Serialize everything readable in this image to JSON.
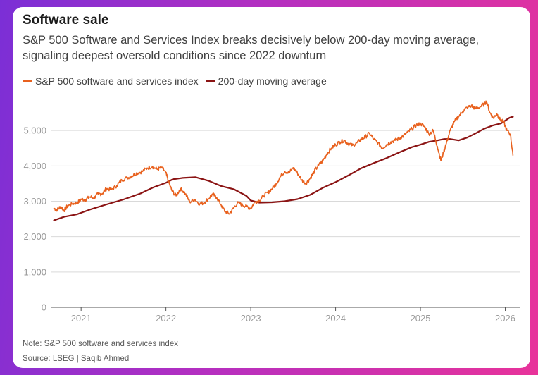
{
  "header": {
    "title": "Software sale",
    "subtitle": "S&P 500 Software and Services Index breaks decisively below 200-day moving average, signaling deepest oversold conditions since 2022 downturn"
  },
  "footer": {
    "note": "Note: S&P 500 software and services index",
    "source": "Source: LSEG | Saqib Ahmed"
  },
  "colors": {
    "index": "#e8611e",
    "moving_average": "#8b1414",
    "grid": "#d9d9d9",
    "axis": "#555555"
  },
  "chart_data": {
    "type": "line",
    "title": "Software sale",
    "xlabel": "",
    "ylabel": "",
    "xlim": [
      2020.65,
      2026.17
    ],
    "ylim": [
      0,
      6000
    ],
    "yticks": [
      0,
      1000,
      2000,
      3000,
      4000,
      5000
    ],
    "ytick_labels": [
      "0",
      "1,000",
      "2,000",
      "3,000",
      "4,000",
      "5,000"
    ],
    "xticks": [
      2021,
      2022,
      2023,
      2024,
      2025,
      2026
    ],
    "xtick_labels": [
      "2021",
      "2022",
      "2023",
      "2024",
      "2025",
      "2026"
    ],
    "legend_position": "top-left",
    "series": [
      {
        "name": "S&P 500 software and services index",
        "color": "#e8611e",
        "x": [
          2020.68,
          2020.72,
          2020.76,
          2020.8,
          2020.84,
          2020.9,
          2020.96,
          2021.0,
          2021.05,
          2021.1,
          2021.15,
          2021.2,
          2021.25,
          2021.3,
          2021.36,
          2021.42,
          2021.48,
          2021.54,
          2021.6,
          2021.66,
          2021.72,
          2021.78,
          2021.84,
          2021.9,
          2021.95,
          2022.0,
          2022.03,
          2022.07,
          2022.12,
          2022.17,
          2022.22,
          2022.28,
          2022.34,
          2022.4,
          2022.45,
          2022.5,
          2022.55,
          2022.6,
          2022.65,
          2022.7,
          2022.75,
          2022.8,
          2022.85,
          2022.9,
          2022.95,
          2023.0,
          2023.05,
          2023.1,
          2023.15,
          2023.2,
          2023.25,
          2023.3,
          2023.35,
          2023.4,
          2023.45,
          2023.5,
          2023.55,
          2023.6,
          2023.65,
          2023.7,
          2023.75,
          2023.8,
          2023.85,
          2023.9,
          2023.95,
          2024.0,
          2024.05,
          2024.1,
          2024.15,
          2024.2,
          2024.25,
          2024.3,
          2024.35,
          2024.4,
          2024.45,
          2024.5,
          2024.55,
          2024.6,
          2024.65,
          2024.7,
          2024.75,
          2024.8,
          2024.85,
          2024.9,
          2024.95,
          2025.0,
          2025.05,
          2025.1,
          2025.15,
          2025.2,
          2025.24,
          2025.27,
          2025.3,
          2025.35,
          2025.4,
          2025.45,
          2025.5,
          2025.55,
          2025.6,
          2025.65,
          2025.7,
          2025.75,
          2025.78,
          2025.82,
          2025.86,
          2025.9,
          2025.94,
          2025.98,
          2026.02,
          2026.06,
          2026.09
        ],
        "values": [
          2800,
          2760,
          2850,
          2740,
          2870,
          2930,
          2960,
          3060,
          3040,
          3120,
          3100,
          3200,
          3220,
          3360,
          3330,
          3440,
          3600,
          3660,
          3720,
          3800,
          3840,
          3940,
          3980,
          3900,
          3960,
          3800,
          3550,
          3300,
          3150,
          3360,
          3250,
          2980,
          3050,
          2920,
          2960,
          3070,
          3200,
          3100,
          2900,
          2700,
          2650,
          2820,
          2960,
          2900,
          2850,
          2800,
          2980,
          3020,
          3150,
          3250,
          3350,
          3500,
          3700,
          3850,
          3800,
          3950,
          3800,
          3600,
          3500,
          3650,
          3850,
          4020,
          4150,
          4350,
          4500,
          4600,
          4680,
          4720,
          4630,
          4580,
          4650,
          4750,
          4820,
          4920,
          4750,
          4650,
          4500,
          4600,
          4680,
          4720,
          4780,
          4850,
          4950,
          5050,
          5150,
          5200,
          5100,
          4900,
          5000,
          4550,
          4150,
          4350,
          4600,
          5000,
          5250,
          5400,
          5550,
          5650,
          5700,
          5620,
          5660,
          5750,
          5820,
          5500,
          5350,
          5480,
          5300,
          5250,
          5000,
          4900,
          4300
        ]
      },
      {
        "name": "200-day moving average",
        "color": "#8b1414",
        "x": [
          2020.68,
          2020.8,
          2020.95,
          2021.1,
          2021.3,
          2021.5,
          2021.7,
          2021.85,
          2022.0,
          2022.08,
          2022.2,
          2022.35,
          2022.5,
          2022.65,
          2022.8,
          2022.95,
          2023.0,
          2023.1,
          2023.25,
          2023.4,
          2023.55,
          2023.7,
          2023.85,
          2024.0,
          2024.15,
          2024.3,
          2024.45,
          2024.6,
          2024.75,
          2024.9,
          2025.0,
          2025.1,
          2025.2,
          2025.28,
          2025.35,
          2025.45,
          2025.55,
          2025.65,
          2025.75,
          2025.85,
          2025.95,
          2026.05,
          2026.09
        ],
        "values": [
          2460,
          2560,
          2630,
          2760,
          2910,
          3050,
          3220,
          3390,
          3520,
          3620,
          3660,
          3680,
          3580,
          3430,
          3340,
          3150,
          3020,
          2960,
          2970,
          3000,
          3060,
          3180,
          3380,
          3540,
          3730,
          3930,
          4080,
          4220,
          4380,
          4530,
          4600,
          4680,
          4720,
          4760,
          4760,
          4720,
          4800,
          4920,
          5050,
          5140,
          5200,
          5360,
          5390
        ]
      }
    ]
  }
}
